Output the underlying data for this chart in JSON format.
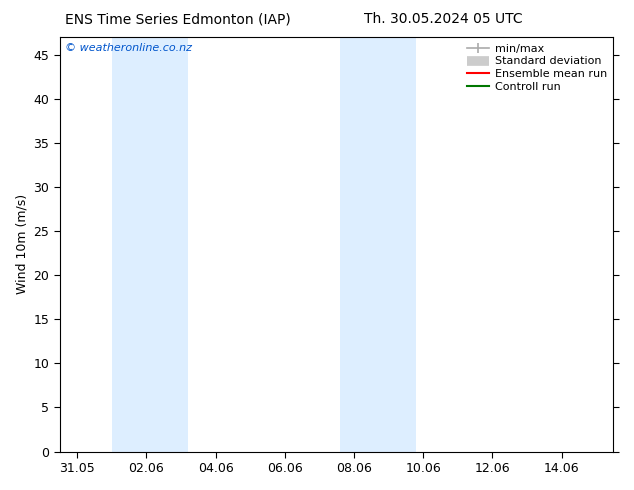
{
  "title_left": "ENS Time Series Edmonton (IAP)",
  "title_right": "Th. 30.05.2024 05 UTC",
  "ylabel": "Wind 10m (m/s)",
  "ylim": [
    0,
    47
  ],
  "yticks": [
    0,
    5,
    10,
    15,
    20,
    25,
    30,
    35,
    40,
    45
  ],
  "x_tick_labels": [
    "31.05",
    "02.06",
    "04.06",
    "06.06",
    "08.06",
    "10.06",
    "12.06",
    "14.06"
  ],
  "x_tick_positions": [
    0,
    2,
    4,
    6,
    8,
    10,
    12,
    14
  ],
  "shaded_bands": [
    {
      "xmin": 1.0,
      "xmax": 3.2
    },
    {
      "xmin": 7.6,
      "xmax": 9.8
    }
  ],
  "band_color": "#ddeeff",
  "background_color": "#ffffff",
  "plot_bg_color": "#ffffff",
  "copyright_text": "© weatheronline.co.nz",
  "copyright_color": "#0055cc",
  "legend_entries": [
    {
      "label": "min/max",
      "color": "#aaaaaa",
      "lw": 1.2
    },
    {
      "label": "Standard deviation",
      "color": "#cccccc",
      "lw": 7
    },
    {
      "label": "Ensemble mean run",
      "color": "#ff0000",
      "lw": 1.5
    },
    {
      "label": "Controll run",
      "color": "#007700",
      "lw": 1.5
    }
  ],
  "xlim": [
    -0.5,
    15.5
  ],
  "title_fontsize": 10,
  "ylabel_fontsize": 9,
  "tick_fontsize": 9,
  "legend_fontsize": 8,
  "copyright_fontsize": 8
}
